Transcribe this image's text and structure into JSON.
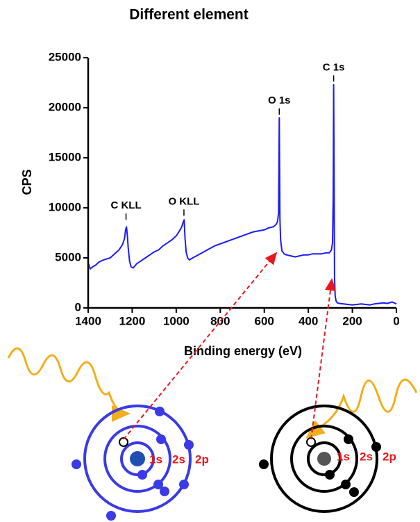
{
  "chart_data": {
    "type": "line",
    "title": "Different element",
    "xlabel": "Binding energy (eV)",
    "ylabel": "CPS",
    "x": [
      1400,
      1390,
      1380,
      1365,
      1350,
      1330,
      1300,
      1280,
      1260,
      1245,
      1235,
      1230,
      1226,
      1222,
      1218,
      1212,
      1205,
      1195,
      1180,
      1160,
      1140,
      1120,
      1100,
      1080,
      1060,
      1040,
      1020,
      1000,
      985,
      975,
      968,
      964,
      960,
      955,
      948,
      940,
      925,
      900,
      875,
      850,
      825,
      800,
      775,
      750,
      725,
      700,
      675,
      650,
      625,
      600,
      580,
      560,
      548,
      540,
      535,
      532,
      529,
      526,
      520,
      510,
      500,
      480,
      460,
      440,
      420,
      400,
      380,
      360,
      340,
      320,
      305,
      295,
      290,
      287,
      285,
      283,
      281,
      278,
      274,
      268,
      260,
      240,
      220,
      200,
      180,
      160,
      140,
      120,
      100,
      80,
      60,
      40,
      20,
      10,
      0
    ],
    "values": [
      4500,
      3900,
      4100,
      4300,
      4600,
      4800,
      5000,
      5400,
      5800,
      6300,
      6900,
      7800,
      8100,
      7200,
      6000,
      4700,
      4100,
      4000,
      4400,
      4700,
      5000,
      5300,
      5600,
      5800,
      6200,
      6500,
      6800,
      7200,
      7700,
      8100,
      8600,
      8800,
      7000,
      5600,
      5000,
      4800,
      5000,
      5300,
      5600,
      5900,
      6200,
      6400,
      6600,
      6800,
      7000,
      7200,
      7400,
      7600,
      7700,
      7800,
      8000,
      8100,
      8300,
      8600,
      9500,
      19000,
      9000,
      6800,
      5700,
      5400,
      5300,
      5200,
      5100,
      5200,
      5300,
      5300,
      5400,
      5400,
      5400,
      5500,
      5500,
      5800,
      6500,
      11000,
      22300,
      14000,
      3000,
      1200,
      700,
      500,
      450,
      400,
      350,
      300,
      350,
      400,
      350,
      300,
      400,
      450,
      500,
      450,
      600,
      500,
      400
    ],
    "color": "#1a1aff",
    "xlim": [
      1400,
      0
    ],
    "ylim": [
      0,
      25000
    ],
    "xticks": [
      1400,
      1200,
      1000,
      800,
      600,
      400,
      200,
      0
    ],
    "yticks": [
      0,
      5000,
      10000,
      15000,
      20000,
      25000
    ],
    "annotations": [
      {
        "text": "C KLL",
        "x": 1228,
        "y": 10200
      },
      {
        "text": "O KLL",
        "x": 965,
        "y": 10600
      },
      {
        "text": "O 1s",
        "x": 532,
        "y": 20700
      },
      {
        "text": "C 1s",
        "x": 285,
        "y": 24000
      }
    ]
  },
  "diagram": {
    "left_labels": [
      "1s",
      "2s",
      "2p"
    ],
    "right_labels": [
      "1s",
      "2s",
      "2p"
    ]
  }
}
